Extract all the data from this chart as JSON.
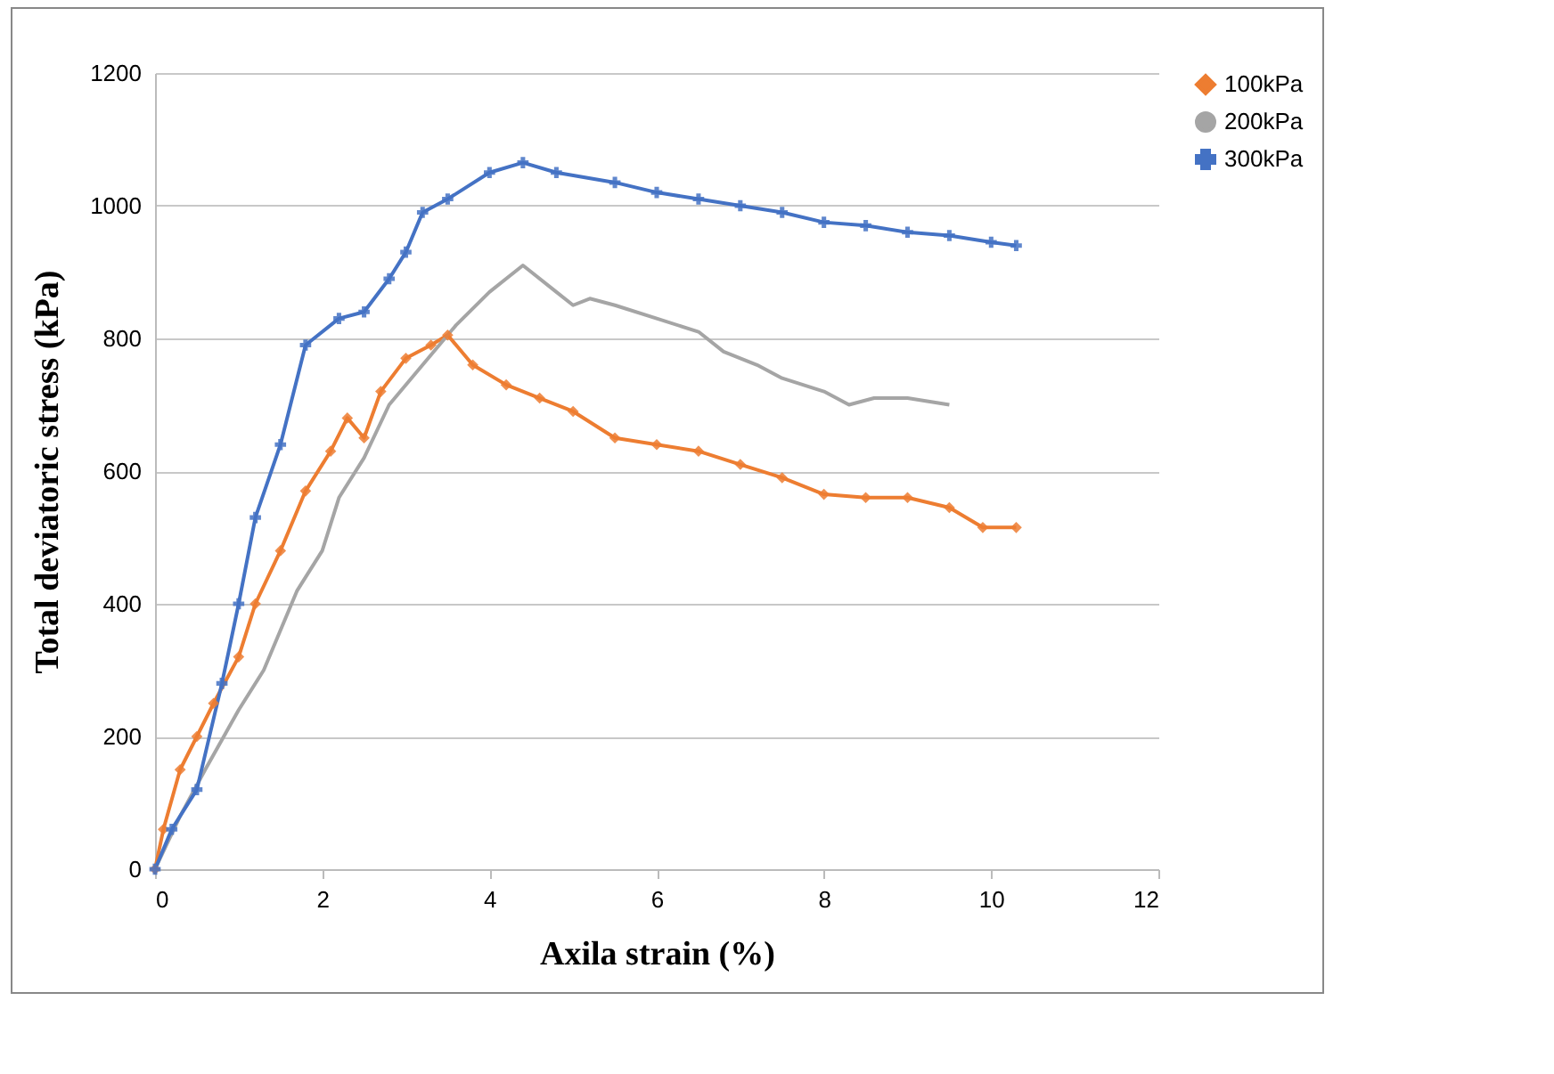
{
  "chart_data": {
    "type": "line",
    "xlabel": "Axila strain (%)",
    "ylabel": "Total deviatoric stress (kPa)",
    "xlim": [
      0,
      12
    ],
    "xticks": [
      0,
      2,
      4,
      6,
      8,
      10,
      12
    ],
    "ylim": [
      0,
      1200
    ],
    "yticks": [
      0,
      200,
      400,
      600,
      800,
      1000,
      1200
    ],
    "grid": "y",
    "legend": "right",
    "series": [
      {
        "name": "100kPa",
        "color": "#ed7d31",
        "marker": "diamond",
        "x": [
          0,
          0.1,
          0.3,
          0.5,
          0.7,
          1,
          1.2,
          1.5,
          1.8,
          2.1,
          2.3,
          2.5,
          2.7,
          3.0,
          3.3,
          3.5,
          3.8,
          4.2,
          4.6,
          5.0,
          5.5,
          6,
          6.5,
          7,
          7.5,
          8,
          8.5,
          9,
          9.5,
          9.9,
          10.3
        ],
        "values": [
          0,
          60,
          150,
          200,
          250,
          320,
          400,
          480,
          570,
          630,
          680,
          650,
          720,
          770,
          790,
          805,
          760,
          730,
          710,
          690,
          650,
          640,
          630,
          610,
          590,
          565,
          560,
          560,
          545,
          515,
          515
        ]
      },
      {
        "name": "200kPa",
        "color": "#a5a5a5",
        "marker": "none",
        "x": [
          0,
          0.3,
          0.6,
          1,
          1.3,
          1.5,
          1.7,
          2.0,
          2.2,
          2.5,
          2.8,
          3.2,
          3.6,
          4.0,
          4.4,
          4.8,
          5.0,
          5.2,
          5.5,
          6,
          6.5,
          6.8,
          7.2,
          7.5,
          8,
          8.3,
          8.6,
          9,
          9.5
        ],
        "values": [
          0,
          80,
          150,
          240,
          300,
          360,
          420,
          480,
          560,
          620,
          700,
          760,
          820,
          870,
          910,
          870,
          850,
          860,
          850,
          830,
          810,
          780,
          760,
          740,
          720,
          700,
          710,
          710,
          700
        ]
      },
      {
        "name": "300kPa",
        "color": "#4472c4",
        "marker": "cross",
        "x": [
          0,
          0.2,
          0.5,
          0.8,
          1.0,
          1.2,
          1.5,
          1.8,
          2.2,
          2.5,
          2.8,
          3.0,
          3.2,
          3.5,
          4.0,
          4.4,
          4.8,
          5.5,
          6,
          6.5,
          7,
          7.5,
          8,
          8.5,
          9,
          9.5,
          10,
          10.3
        ],
        "values": [
          0,
          60,
          120,
          280,
          400,
          530,
          640,
          790,
          830,
          840,
          890,
          930,
          990,
          1010,
          1050,
          1065,
          1050,
          1035,
          1020,
          1010,
          1000,
          990,
          975,
          970,
          960,
          955,
          945,
          940
        ]
      }
    ]
  }
}
